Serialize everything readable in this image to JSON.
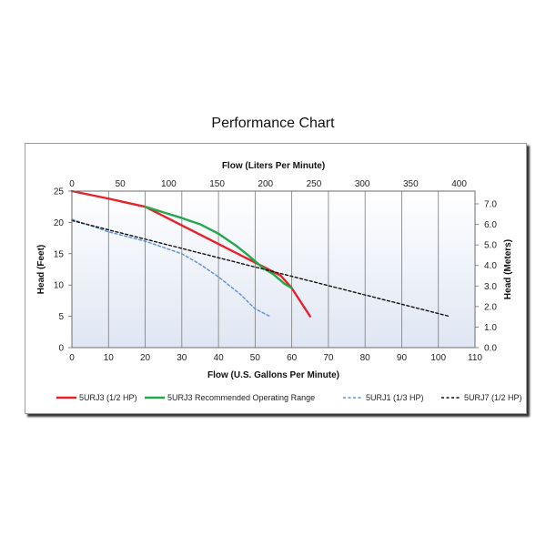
{
  "chart_data": {
    "type": "line",
    "title": "Performance Chart",
    "xlabel": "Flow (U.S. Gallons Per Minute)",
    "x2label": "Flow (Liters Per Minute)",
    "ylabel": "Head (Feet)",
    "y2label": "Head (Meters)",
    "xlim": [
      0,
      110
    ],
    "ylim": [
      0,
      25
    ],
    "x2lim": [
      0,
      416.4
    ],
    "y2lim": [
      0,
      7.62
    ],
    "x_ticks": [
      "0",
      "10",
      "20",
      "30",
      "40",
      "50",
      "60",
      "70",
      "80",
      "90",
      "100",
      "110"
    ],
    "y_ticks": [
      "0",
      "5",
      "10",
      "15",
      "20",
      "25"
    ],
    "x2_ticks": [
      "0",
      "50",
      "100",
      "150",
      "200",
      "250",
      "300",
      "350",
      "400"
    ],
    "y2_ticks": [
      "0.0",
      "1.0",
      "2.0",
      "3.0",
      "4.0",
      "5.0",
      "6.0",
      "7.0"
    ],
    "grid": "vertical",
    "legend_position": "bottom",
    "series": [
      {
        "name": "5URJ3 (1/2 HP)",
        "color": "#e8202a",
        "style": "solid",
        "x": [
          0,
          10,
          20,
          57,
          60,
          65
        ],
        "y": [
          25,
          23.8,
          22.5,
          11.5,
          9.5,
          5
        ]
      },
      {
        "name": "5URJ3 Recommended Operating Range",
        "color": "#22a84a",
        "style": "solid",
        "x": [
          20,
          25,
          30,
          35,
          40,
          45,
          48,
          52,
          55,
          58,
          60
        ],
        "y": [
          22.5,
          21.6,
          20.7,
          19.7,
          18.2,
          16.2,
          14.8,
          12.8,
          11.7,
          10.2,
          9.5
        ]
      },
      {
        "name": "5URJ1 (1/3 HP)",
        "color": "#5b8fd6",
        "style": "dashed",
        "x": [
          0,
          10,
          20,
          30,
          35,
          40,
          46,
          50,
          54
        ],
        "y": [
          20.5,
          18.5,
          17,
          15,
          13.3,
          11.3,
          8.5,
          6.2,
          5
        ]
      },
      {
        "name": "5URJ7 (1/2 HP)",
        "color": "#111111",
        "style": "dashed",
        "x": [
          0,
          103
        ],
        "y": [
          20.3,
          5
        ]
      }
    ]
  }
}
